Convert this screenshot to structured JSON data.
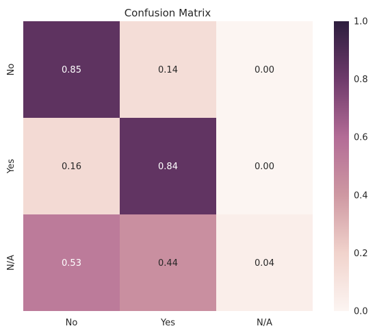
{
  "chart_data": {
    "type": "heatmap",
    "title": "Confusion Matrix",
    "xlabel": "",
    "ylabel": "",
    "x_categories": [
      "No",
      "Yes",
      "N/A"
    ],
    "y_categories": [
      "No",
      "Yes",
      "N/A"
    ],
    "values": [
      [
        0.85,
        0.14,
        0.0
      ],
      [
        0.16,
        0.84,
        0.0
      ],
      [
        0.53,
        0.44,
        0.04
      ]
    ],
    "cell_labels": [
      [
        "0.85",
        "0.14",
        "0.00"
      ],
      [
        "0.16",
        "0.84",
        "0.00"
      ],
      [
        "0.53",
        "0.44",
        "0.04"
      ]
    ],
    "color_range": [
      0.0,
      1.0
    ],
    "colorbar_ticks": [
      "0.0",
      "0.2",
      "0.4",
      "0.6",
      "0.8",
      "1.0"
    ],
    "colormap_stops": [
      "#fcf5f2",
      "#f1d3cc",
      "#ce98a2",
      "#b36c96",
      "#6e3a6b",
      "#2d1e3e"
    ],
    "grid": false,
    "legend": "colorbar-right"
  }
}
